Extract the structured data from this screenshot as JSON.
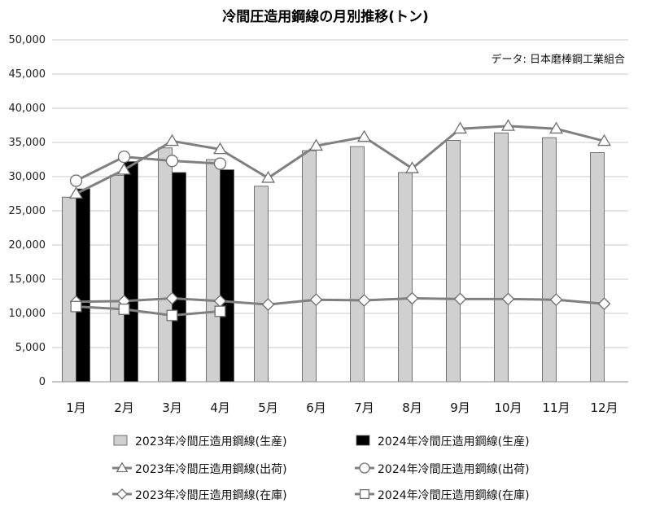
{
  "chart_data": {
    "type": "bar",
    "title": "冷間圧造用鋼線の月別推移(トン)",
    "source_note": "データ: 日本磨棒鋼工業組合",
    "categories": [
      "1月",
      "2月",
      "3月",
      "4月",
      "5月",
      "6月",
      "7月",
      "8月",
      "9月",
      "10月",
      "11月",
      "12月"
    ],
    "ylim": [
      0,
      50000
    ],
    "yticks": [
      0,
      5000,
      10000,
      15000,
      20000,
      25000,
      30000,
      35000,
      40000,
      45000,
      50000
    ],
    "ytick_labels": [
      "0",
      "5,000",
      "10,000",
      "15,000",
      "20,000",
      "25,000",
      "30,000",
      "35,000",
      "40,000",
      "45,000",
      "50,000"
    ],
    "grid": true,
    "legend_position": "bottom",
    "series": [
      {
        "name": "2023年冷間圧造用鋼線(生産)",
        "kind": "bar",
        "color": "#d0d0d0",
        "values": [
          27000,
          30200,
          34200,
          32500,
          28600,
          33800,
          34400,
          30600,
          35300,
          36400,
          35700,
          33500
        ]
      },
      {
        "name": "2024年冷間圧造用鋼線(生産)",
        "kind": "bar",
        "color": "#000000",
        "values": [
          28200,
          32200,
          30600,
          31000,
          null,
          null,
          null,
          null,
          null,
          null,
          null,
          null
        ]
      },
      {
        "name": "2023年冷間圧造用鋼線(出荷)",
        "kind": "line",
        "marker": "triangle",
        "color": "#808080",
        "values": [
          27500,
          31000,
          35200,
          34000,
          29800,
          34500,
          35800,
          31200,
          37000,
          37400,
          37000,
          35200
        ]
      },
      {
        "name": "2024年冷間圧造用鋼線(出荷)",
        "kind": "line",
        "marker": "circle",
        "color": "#808080",
        "values": [
          29400,
          32900,
          32300,
          31900,
          null,
          null,
          null,
          null,
          null,
          null,
          null,
          null
        ]
      },
      {
        "name": "2023年冷間圧造用鋼線(在庫)",
        "kind": "line",
        "marker": "diamond",
        "color": "#808080",
        "values": [
          11700,
          11800,
          12200,
          11800,
          11300,
          12000,
          11900,
          12200,
          12100,
          12100,
          12000,
          11400
        ]
      },
      {
        "name": "2024年冷間圧造用鋼線(在庫)",
        "kind": "line",
        "marker": "square",
        "color": "#808080",
        "values": [
          11000,
          10600,
          9700,
          10300,
          null,
          null,
          null,
          null,
          null,
          null,
          null,
          null
        ]
      }
    ]
  }
}
